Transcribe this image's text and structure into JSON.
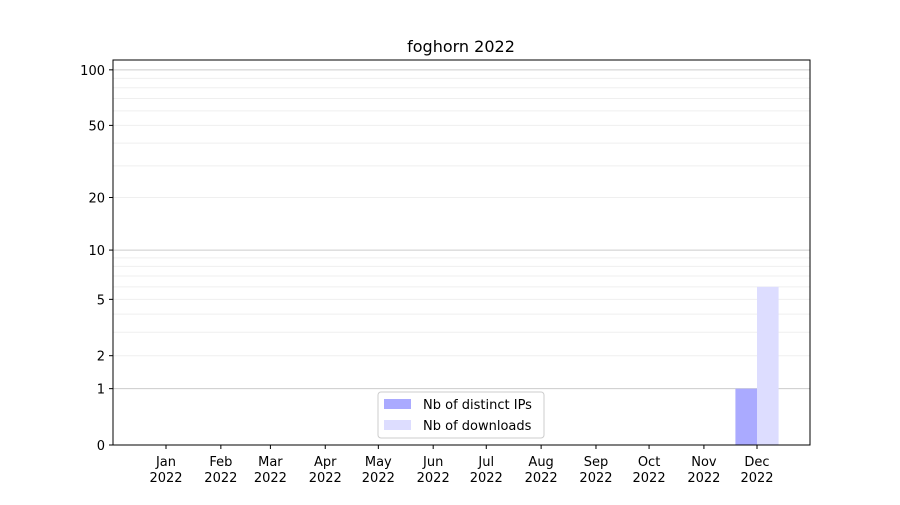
{
  "chart_data": {
    "type": "bar",
    "title": "foghorn 2022",
    "xlabel": "",
    "ylabel": "",
    "y_scale": "log(1+y)",
    "ylim": [
      0,
      113
    ],
    "y_major_ticks": [
      0,
      1,
      2,
      5,
      10,
      20,
      50,
      100
    ],
    "y_minor_grid": [
      3,
      4,
      6,
      7,
      8,
      9,
      30,
      40,
      60,
      70,
      80,
      90
    ],
    "grid": true,
    "x_ticks": [
      {
        "date": "2022-01-01",
        "label": [
          "Jan",
          "2022"
        ]
      },
      {
        "date": "2022-02-01",
        "label": [
          "Feb",
          "2022"
        ]
      },
      {
        "date": "2022-03-01",
        "label": [
          "Mar",
          "2022"
        ]
      },
      {
        "date": "2022-04-01",
        "label": [
          "Apr",
          "2022"
        ]
      },
      {
        "date": "2022-05-01",
        "label": [
          "May",
          "2022"
        ]
      },
      {
        "date": "2022-06-01",
        "label": [
          "Jun",
          "2022"
        ]
      },
      {
        "date": "2022-07-01",
        "label": [
          "Jul",
          "2022"
        ]
      },
      {
        "date": "2022-08-01",
        "label": [
          "Aug",
          "2022"
        ]
      },
      {
        "date": "2022-09-01",
        "label": [
          "Sep",
          "2022"
        ]
      },
      {
        "date": "2022-10-01",
        "label": [
          "Oct",
          "2022"
        ]
      },
      {
        "date": "2022-11-01",
        "label": [
          "Nov",
          "2022"
        ]
      },
      {
        "date": "2022-12-01",
        "label": [
          "Dec",
          "2022"
        ]
      }
    ],
    "categories": [
      "2022-12"
    ],
    "series": [
      {
        "name": "Nb of distinct IPs",
        "values": [
          1
        ],
        "color": "#aaaaff"
      },
      {
        "name": "Nb of downloads",
        "values": [
          6
        ],
        "color": "#ddddff"
      }
    ],
    "legend_position": "lower-center"
  }
}
